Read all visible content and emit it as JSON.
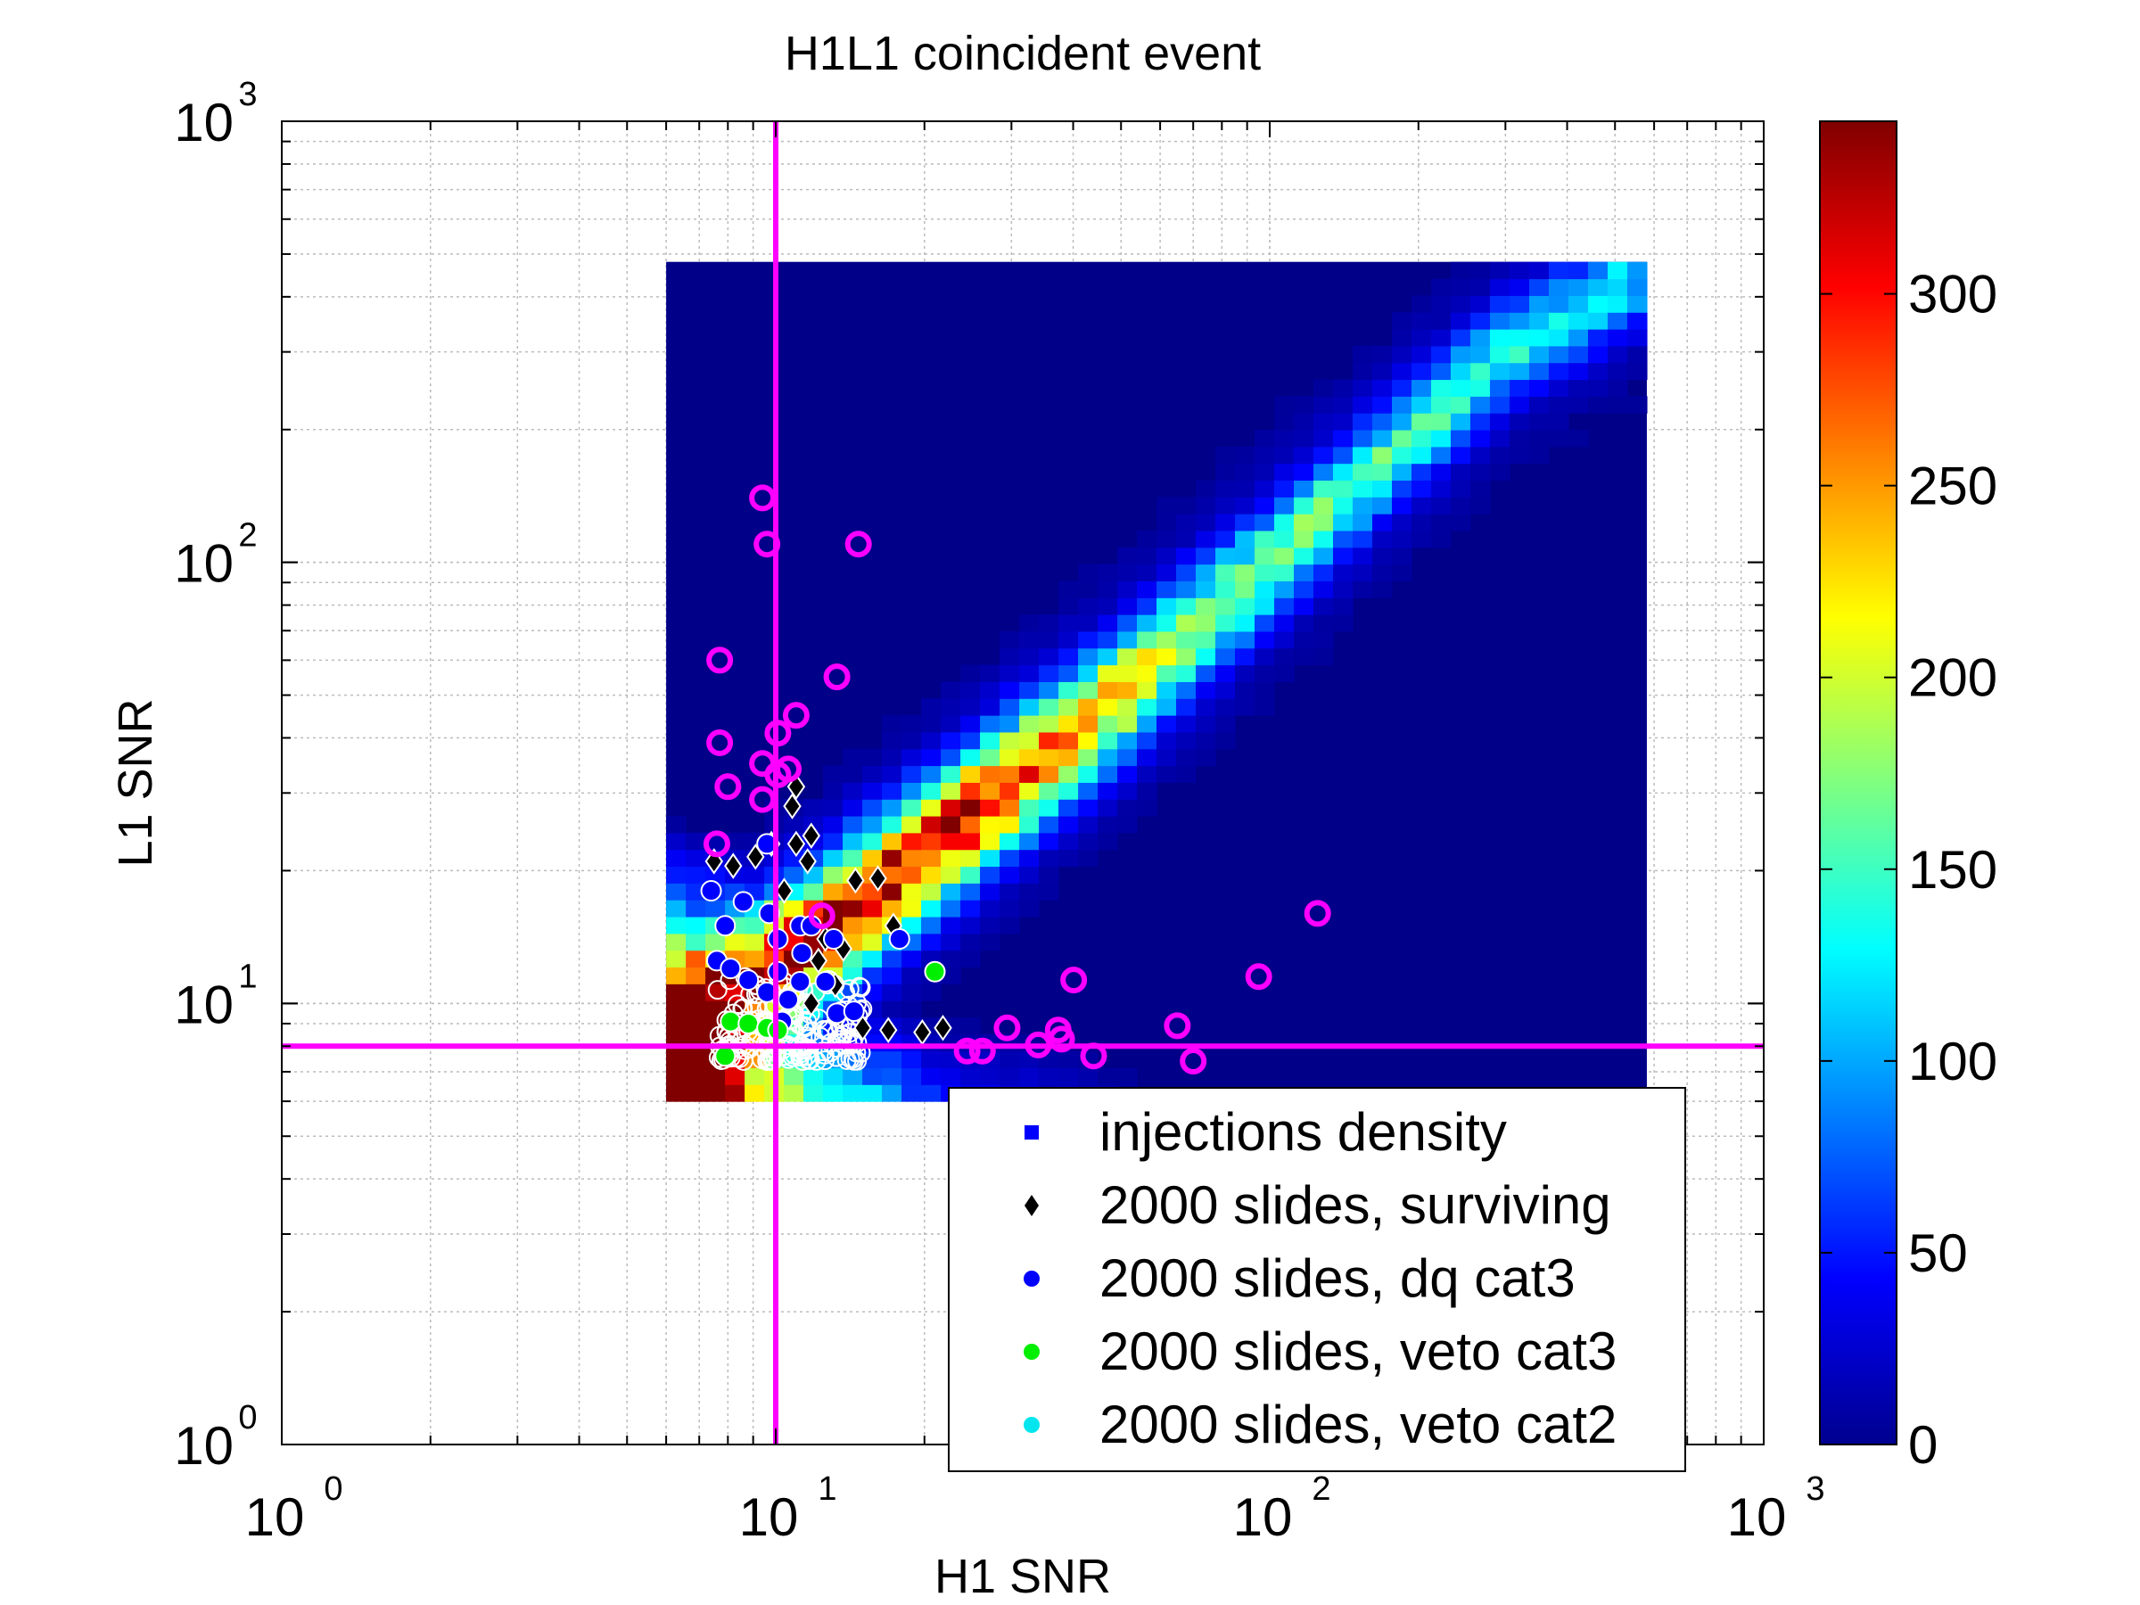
{
  "chart_data": {
    "type": "scatter",
    "title": "H1L1 coincident event",
    "xlabel": "H1 SNR",
    "ylabel": "L1 SNR",
    "x_scale": "log",
    "y_scale": "log",
    "xlim": [
      1,
      1000
    ],
    "ylim": [
      1,
      1000
    ],
    "grid": true,
    "x_ticks": [
      {
        "base": "10",
        "exp": "0",
        "value": 1
      },
      {
        "base": "10",
        "exp": "1",
        "value": 10
      },
      {
        "base": "10",
        "exp": "2",
        "value": 100
      },
      {
        "base": "10",
        "exp": "3",
        "value": 1000
      }
    ],
    "y_ticks": [
      {
        "base": "10",
        "exp": "0",
        "value": 1
      },
      {
        "base": "10",
        "exp": "1",
        "value": 10
      },
      {
        "base": "10",
        "exp": "2",
        "value": 100
      },
      {
        "base": "10",
        "exp": "3",
        "value": 1000
      }
    ],
    "threshold_lines": {
      "x": 10,
      "y": 8,
      "color": "#ff00ff"
    },
    "heatmap": {
      "name": "injections density",
      "x_range": [
        6,
        580
      ],
      "y_range": [
        6,
        480
      ],
      "colormap": "jet",
      "clim": [
        0,
        345
      ],
      "background_value": 3,
      "ridge_points": [
        [
          6,
          8
        ],
        [
          14,
          16
        ],
        [
          50,
          50
        ],
        [
          300,
          300
        ],
        [
          560,
          450
        ]
      ]
    },
    "colorbar": {
      "ticks": [
        {
          "label": "0",
          "value": 0
        },
        {
          "label": "50",
          "value": 50
        },
        {
          "label": "100",
          "value": 100
        },
        {
          "label": "150",
          "value": 150
        },
        {
          "label": "200",
          "value": 200
        },
        {
          "label": "250",
          "value": 250
        },
        {
          "label": "300",
          "value": 300
        }
      ]
    },
    "legend": {
      "position": "bottom-right",
      "entries": [
        {
          "label": "injections density",
          "marker": "square",
          "color": "#0000ff"
        },
        {
          "label": "2000 slides, surviving",
          "marker": "diamond",
          "color": "#000000"
        },
        {
          "label": "2000 slides, dq cat3",
          "marker": "circle",
          "color": "#0000ff"
        },
        {
          "label": "2000 slides, veto cat3",
          "marker": "circle",
          "color": "#00ee00"
        },
        {
          "label": "2000 slides, veto cat2",
          "marker": "circle",
          "color": "#00e5ee"
        }
      ]
    },
    "series": [
      {
        "name": "2000 slides, surviving",
        "marker": "diamond",
        "color": "#000000",
        "points": [
          [
            7.5,
            21
          ],
          [
            8.2,
            20.5
          ],
          [
            9.1,
            21.5
          ],
          [
            9.8,
            23
          ],
          [
            11,
            23
          ],
          [
            11,
            31
          ],
          [
            10.8,
            28
          ],
          [
            10.4,
            18
          ],
          [
            11.6,
            21
          ],
          [
            11.8,
            24
          ],
          [
            12.2,
            12.5
          ],
          [
            12.6,
            14
          ],
          [
            14.5,
            19
          ],
          [
            16.1,
            19.2
          ],
          [
            17.3,
            15
          ],
          [
            13.2,
            11
          ],
          [
            13.7,
            13.3
          ],
          [
            11.8,
            10
          ],
          [
            16.9,
            8.7
          ],
          [
            21.8,
            8.8
          ],
          [
            19.8,
            8.6
          ],
          [
            13.5,
            9.4
          ],
          [
            15,
            8.8
          ]
        ]
      },
      {
        "name": "2000 slides, dq cat3",
        "marker": "circle",
        "color": "#0000ff",
        "points": [
          [
            7.4,
            18
          ],
          [
            7.9,
            15
          ],
          [
            8.6,
            17
          ],
          [
            9.7,
            16
          ],
          [
            9.6,
            23
          ],
          [
            10.1,
            14
          ],
          [
            11.2,
            15
          ],
          [
            11.8,
            15
          ],
          [
            11.3,
            13
          ],
          [
            13.1,
            14
          ],
          [
            7.6,
            12.5
          ],
          [
            8.1,
            12
          ],
          [
            8.8,
            11.3
          ],
          [
            10.1,
            11.8
          ],
          [
            11.2,
            11.2
          ],
          [
            12.6,
            11.2
          ],
          [
            9.6,
            10.6
          ],
          [
            10.6,
            10.2
          ],
          [
            13.3,
            9.5
          ],
          [
            14.4,
            9.6
          ],
          [
            17.8,
            14
          ],
          [
            10.3,
            9.1
          ]
        ]
      },
      {
        "name": "2000 slides, veto cat3",
        "marker": "circle",
        "color": "#00ee00",
        "points": [
          [
            8.1,
            9.1
          ],
          [
            8.8,
            9.0
          ],
          [
            9.6,
            8.8
          ],
          [
            10.1,
            8.7
          ],
          [
            7.9,
            7.6
          ],
          [
            21,
            11.8
          ]
        ]
      },
      {
        "name": "H1L1 coincident event",
        "marker": "open-circle",
        "color": "#ff00ff",
        "points": [
          [
            9.4,
            140
          ],
          [
            9.6,
            110
          ],
          [
            14.7,
            110
          ],
          [
            7.7,
            60
          ],
          [
            13.3,
            55
          ],
          [
            7.7,
            39
          ],
          [
            11,
            45
          ],
          [
            10.1,
            41
          ],
          [
            9.4,
            35
          ],
          [
            10.6,
            34
          ],
          [
            10.1,
            33
          ],
          [
            8,
            31
          ],
          [
            9.4,
            29
          ],
          [
            7.6,
            23
          ],
          [
            12.4,
            15.8
          ],
          [
            40.1,
            11.3
          ],
          [
            95,
            11.5
          ],
          [
            125,
            16
          ],
          [
            29.4,
            8.8
          ],
          [
            37.3,
            8.7
          ],
          [
            37.9,
            8.3
          ],
          [
            34,
            8.05
          ],
          [
            24.4,
            7.8
          ],
          [
            26.2,
            7.8
          ],
          [
            44,
            7.6
          ],
          [
            65,
            8.9
          ],
          [
            70,
            7.4
          ]
        ]
      }
    ]
  }
}
